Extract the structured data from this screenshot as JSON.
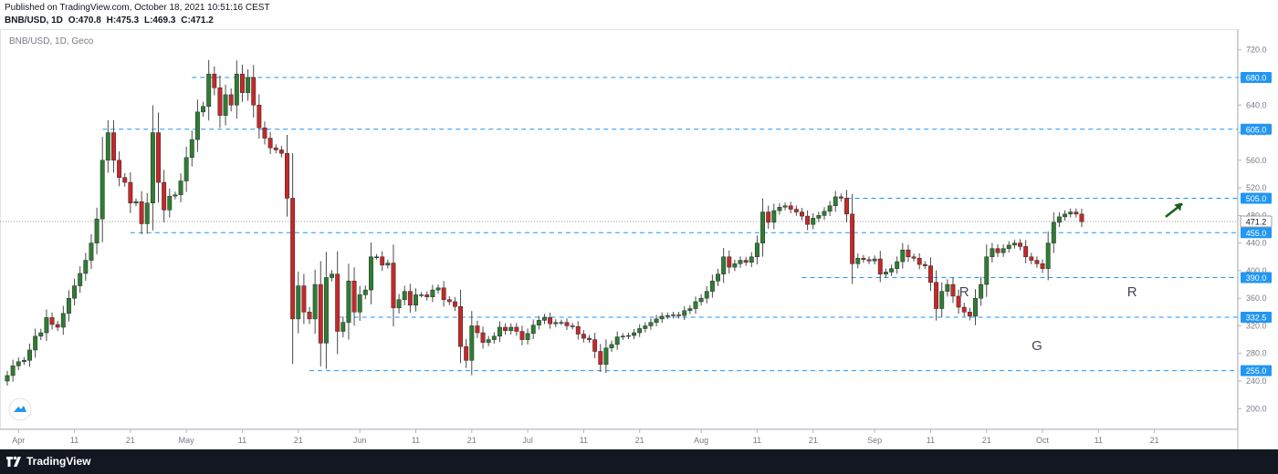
{
  "header": {
    "published": "Published on TradingView.com, October 18, 2021 10:51:16 CEST",
    "symbol": "BNB/USD, 1D",
    "open": "O:470.8",
    "high": "H:475.3",
    "low": "L:469.3",
    "close": "C:471.2"
  },
  "footer": {
    "brand": "TradingView"
  },
  "colors": {
    "up": "#26a69a",
    "up_body": "#2e7d32",
    "down": "#c62828",
    "level": "#2196f3",
    "badge": "#2196f3",
    "current": "#9e9e9e",
    "arrow": "#1b5e20"
  },
  "chart_data": {
    "type": "candlestick",
    "legend": "BNB/USD, 1D, Geco",
    "ylim": [
      170,
      750
    ],
    "y_ticks": [
      200,
      240,
      280,
      320,
      360,
      400,
      440,
      480,
      520,
      560,
      600,
      640,
      680,
      720
    ],
    "y_tick_labels": [
      "200.0",
      "240.0",
      "280.0",
      "320.0",
      "360.0",
      "400.0",
      "440.0",
      "480.0",
      "520.0",
      "560.0",
      "600.0",
      "640.0",
      "680.0",
      "720.0"
    ],
    "x_tick_labels": [
      "Apr",
      "11",
      "21",
      "May",
      "11",
      "21",
      "Jun",
      "11",
      "21",
      "Jul",
      "11",
      "21",
      "Aug",
      "11",
      "21",
      "Sep",
      "11",
      "21",
      "Oct",
      "11",
      "21"
    ],
    "x_tick_days": [
      2,
      12,
      22,
      32,
      42,
      52,
      63,
      73,
      83,
      93,
      103,
      113,
      124,
      134,
      144,
      155,
      165,
      175,
      185,
      195,
      205
    ],
    "levels": [
      {
        "value": 680,
        "label": "680.0",
        "start_day": 33
      },
      {
        "value": 605,
        "label": "605.0",
        "start_day": 17
      },
      {
        "value": 505,
        "label": "505.0",
        "start_day": 150
      },
      {
        "value": 455,
        "label": "455.0",
        "start_day": 22
      },
      {
        "value": 390,
        "label": "390.0",
        "start_day": 142
      },
      {
        "value": 332.5,
        "label": "332.5",
        "start_day": 59
      },
      {
        "value": 255,
        "label": "255.0",
        "start_day": 54
      }
    ],
    "current_price": {
      "value": 471.2,
      "label": "471.2"
    },
    "annotations": [
      {
        "text": "R",
        "day": 171,
        "value": 363
      },
      {
        "text": "G",
        "day": 184,
        "value": 285
      },
      {
        "text": "R",
        "day": 201,
        "value": 363
      }
    ],
    "arrow": {
      "from": [
        207,
        478
      ],
      "to": [
        210,
        497
      ]
    },
    "closes": [
      248,
      262,
      268,
      270,
      285,
      305,
      310,
      332,
      322,
      318,
      338,
      360,
      378,
      396,
      415,
      440,
      475,
      560,
      600,
      560,
      535,
      528,
      498,
      500,
      468,
      498,
      600,
      528,
      488,
      508,
      510,
      530,
      564,
      590,
      630,
      638,
      685,
      665,
      625,
      655,
      640,
      685,
      658,
      680,
      640,
      607,
      592,
      578,
      575,
      570,
      505,
      330,
      378,
      340,
      330,
      380,
      295,
      390,
      395,
      312,
      325,
      385,
      340,
      365,
      372,
      420,
      420,
      408,
      411,
      346,
      358,
      370,
      350,
      365,
      365,
      362,
      372,
      375,
      358,
      355,
      348,
      290,
      270,
      320,
      310,
      296,
      300,
      305,
      318,
      313,
      318,
      312,
      300,
      309,
      321,
      328,
      332,
      323,
      325,
      325,
      320,
      319,
      308,
      302,
      300,
      283,
      264,
      288,
      293,
      304,
      305,
      306,
      310,
      316,
      320,
      325,
      330,
      334,
      335,
      336,
      335,
      342,
      345,
      355,
      360,
      370,
      385,
      395,
      420,
      405,
      410,
      415,
      412,
      420,
      440,
      485,
      470,
      487,
      492,
      494,
      489,
      485,
      479,
      467,
      476,
      480,
      486,
      494,
      507,
      505,
      482,
      410,
      418,
      416,
      414,
      417,
      395,
      398,
      403,
      413,
      430,
      420,
      418,
      409,
      407,
      383,
      345,
      370,
      380,
      363,
      347,
      340,
      334,
      360,
      380,
      420,
      432,
      426,
      432,
      437,
      440,
      435,
      420,
      415,
      410,
      403,
      440,
      470,
      478,
      482,
      485,
      482,
      471
    ]
  }
}
